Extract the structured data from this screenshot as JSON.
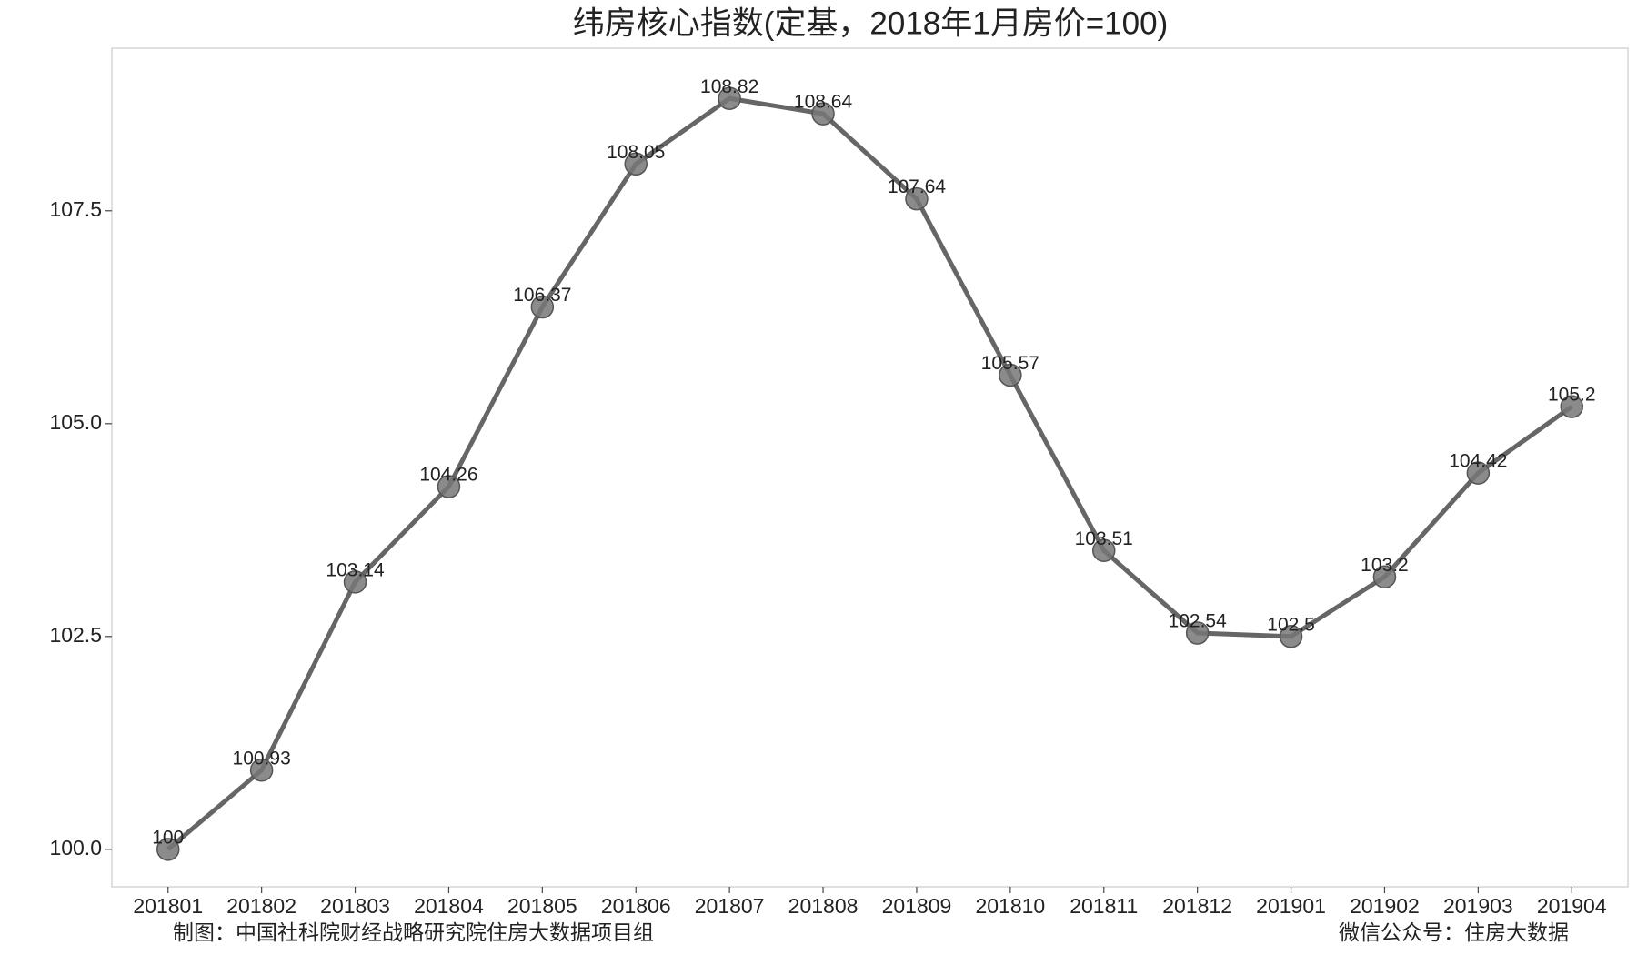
{
  "chart_data": {
    "type": "line",
    "title": "纬房核心指数(定基，2018年1月房价=100)",
    "categories": [
      "201801",
      "201802",
      "201803",
      "201804",
      "201805",
      "201806",
      "201807",
      "201808",
      "201809",
      "201810",
      "201811",
      "201812",
      "201901",
      "201902",
      "201903",
      "201904"
    ],
    "series": [
      {
        "name": "纬房核心指数",
        "color": "#666666",
        "values": [
          100,
          100.93,
          103.14,
          104.26,
          106.37,
          108.05,
          108.82,
          108.64,
          107.64,
          105.57,
          103.51,
          102.54,
          102.5,
          103.2,
          104.42,
          105.2
        ]
      }
    ],
    "ylim": [
      99.56,
      109.41
    ],
    "yticks": [
      {
        "value": 100,
        "label": "100.0"
      },
      {
        "value": 102.5,
        "label": "102.5"
      },
      {
        "value": 105,
        "label": "105.0"
      },
      {
        "value": 107.5,
        "label": "107.5"
      }
    ],
    "grid": false,
    "source": "制图：中国社科院财经战略研究院住房大数据项目组",
    "credit": "微信公众号：住房大数据"
  }
}
